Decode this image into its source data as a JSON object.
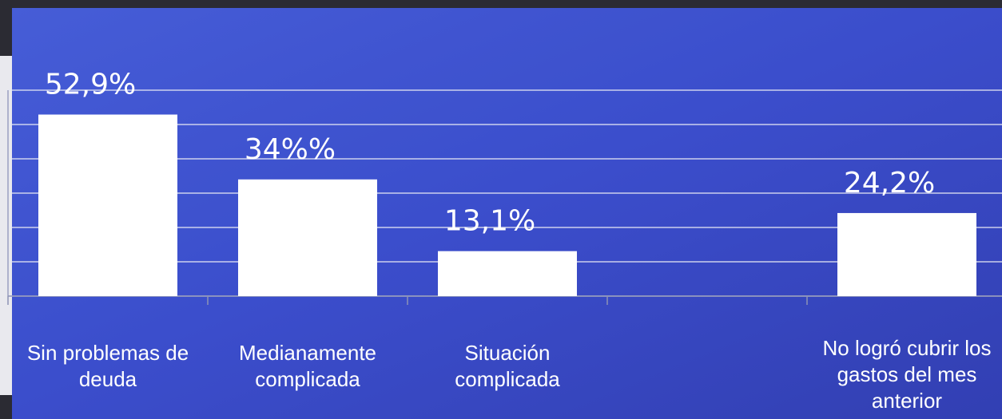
{
  "chart_data": {
    "type": "bar",
    "categories": [
      "Sin problemas de deuda",
      "Medianamente complicada",
      "Situación complicada",
      null,
      "No logró cubrir los gastos del mes anterior"
    ],
    "values": [
      52.9,
      34,
      13.1,
      null,
      24.2
    ],
    "value_labels": [
      "52,9%",
      "34%%",
      "13,1%",
      null,
      "24,2%"
    ],
    "color": "#ffffff",
    "ylim": [
      0,
      60
    ],
    "yticks": [
      0,
      10,
      20,
      30,
      40,
      50,
      60
    ],
    "grid": true
  }
}
